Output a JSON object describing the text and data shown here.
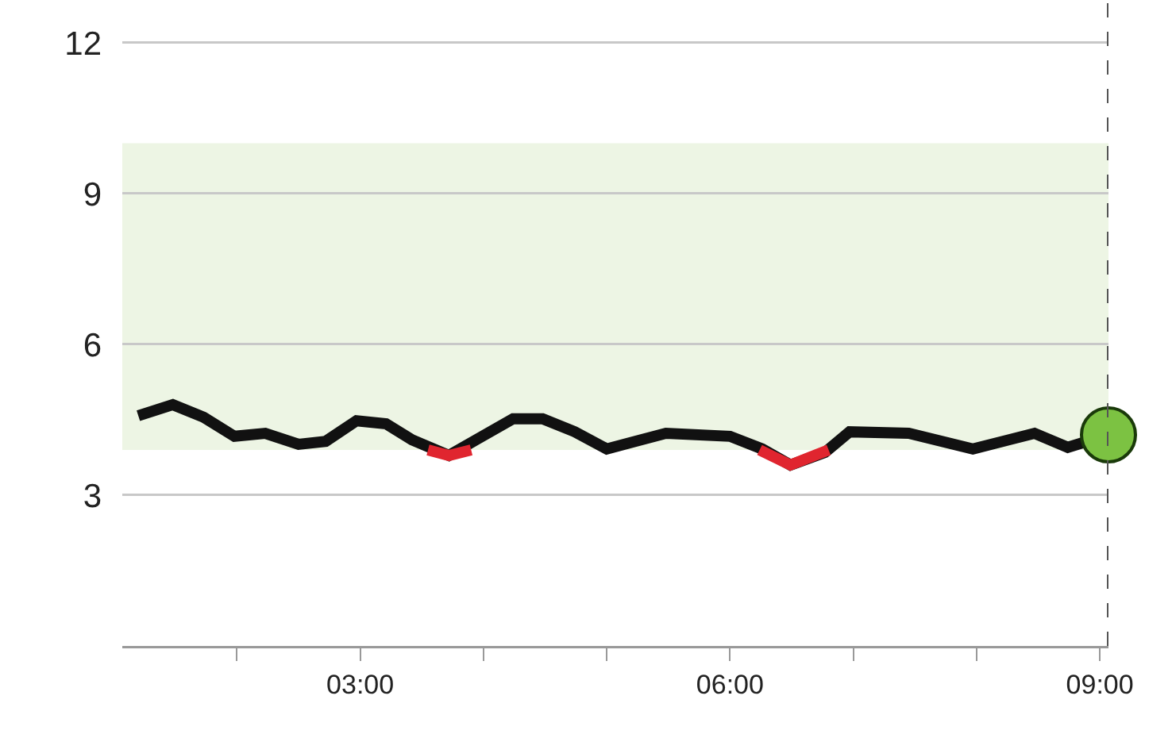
{
  "chart_data": {
    "type": "line",
    "xlim": [
      1.07,
      9.07
    ],
    "ylim": [
      0,
      12.85
    ],
    "xticks": [
      {
        "value": 2,
        "label": null
      },
      {
        "value": 3,
        "label": "03:00"
      },
      {
        "value": 4,
        "label": null
      },
      {
        "value": 5,
        "label": null
      },
      {
        "value": 6,
        "label": "06:00"
      },
      {
        "value": 7,
        "label": null
      },
      {
        "value": 8,
        "label": null
      },
      {
        "value": 9,
        "label": "09:00"
      }
    ],
    "yticks": [
      3,
      6,
      9,
      12
    ],
    "grid": "y",
    "line_style": "solid",
    "bands": [
      {
        "axis": "y",
        "from": 3.9,
        "to": 10,
        "color": "#edf5e4"
      }
    ],
    "ref_lines": [
      {
        "axis": "x",
        "value": 9.07,
        "color": "#555555",
        "line_style": "dashed"
      }
    ],
    "series": [
      {
        "type": "line",
        "color": "#111111",
        "marker": "none",
        "x": [
          1.2,
          1.48,
          1.73,
          1.98,
          2.23,
          2.5,
          2.72,
          2.97,
          3.21,
          3.42,
          3.72,
          3.94,
          4.24,
          4.48,
          4.74,
          5.0,
          5.23,
          5.48,
          6.0,
          6.26,
          6.49,
          6.77,
          6.97,
          7.45,
          7.97,
          8.47,
          8.74,
          9.07
        ],
        "values": [
          4.58,
          4.8,
          4.55,
          4.17,
          4.23,
          4.01,
          4.07,
          4.48,
          4.42,
          4.1,
          3.79,
          4.1,
          4.52,
          4.52,
          4.26,
          3.92,
          4.07,
          4.23,
          4.17,
          3.92,
          3.6,
          3.85,
          4.26,
          4.23,
          3.92,
          4.23,
          3.95,
          4.2
        ]
      },
      {
        "type": "line",
        "color": "#e0252f",
        "marker": "none",
        "x": [
          3.55,
          3.72,
          3.9,
          5.0,
          6.24,
          6.49,
          6.8
        ],
        "values": [
          3.9,
          3.79,
          3.9,
          null,
          3.9,
          3.6,
          3.9
        ]
      },
      {
        "type": "scatter",
        "color": "#7cc242",
        "marker": "circle",
        "x": [
          9.07
        ],
        "values": [
          4.2
        ]
      }
    ]
  }
}
